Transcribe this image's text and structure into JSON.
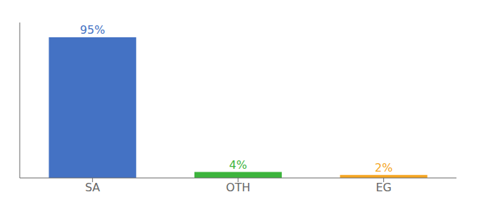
{
  "chart_data": {
    "type": "bar",
    "categories": [
      "SA",
      "OTH",
      "EG"
    ],
    "values": [
      95,
      4,
      2
    ],
    "value_labels": [
      "95%",
      "4%",
      "2%"
    ],
    "colors": [
      "#4472c4",
      "#3cb43c",
      "#f5a623"
    ],
    "ylim": [
      0,
      105
    ],
    "grid": false,
    "data_labels": true,
    "tick_labels": "x"
  }
}
